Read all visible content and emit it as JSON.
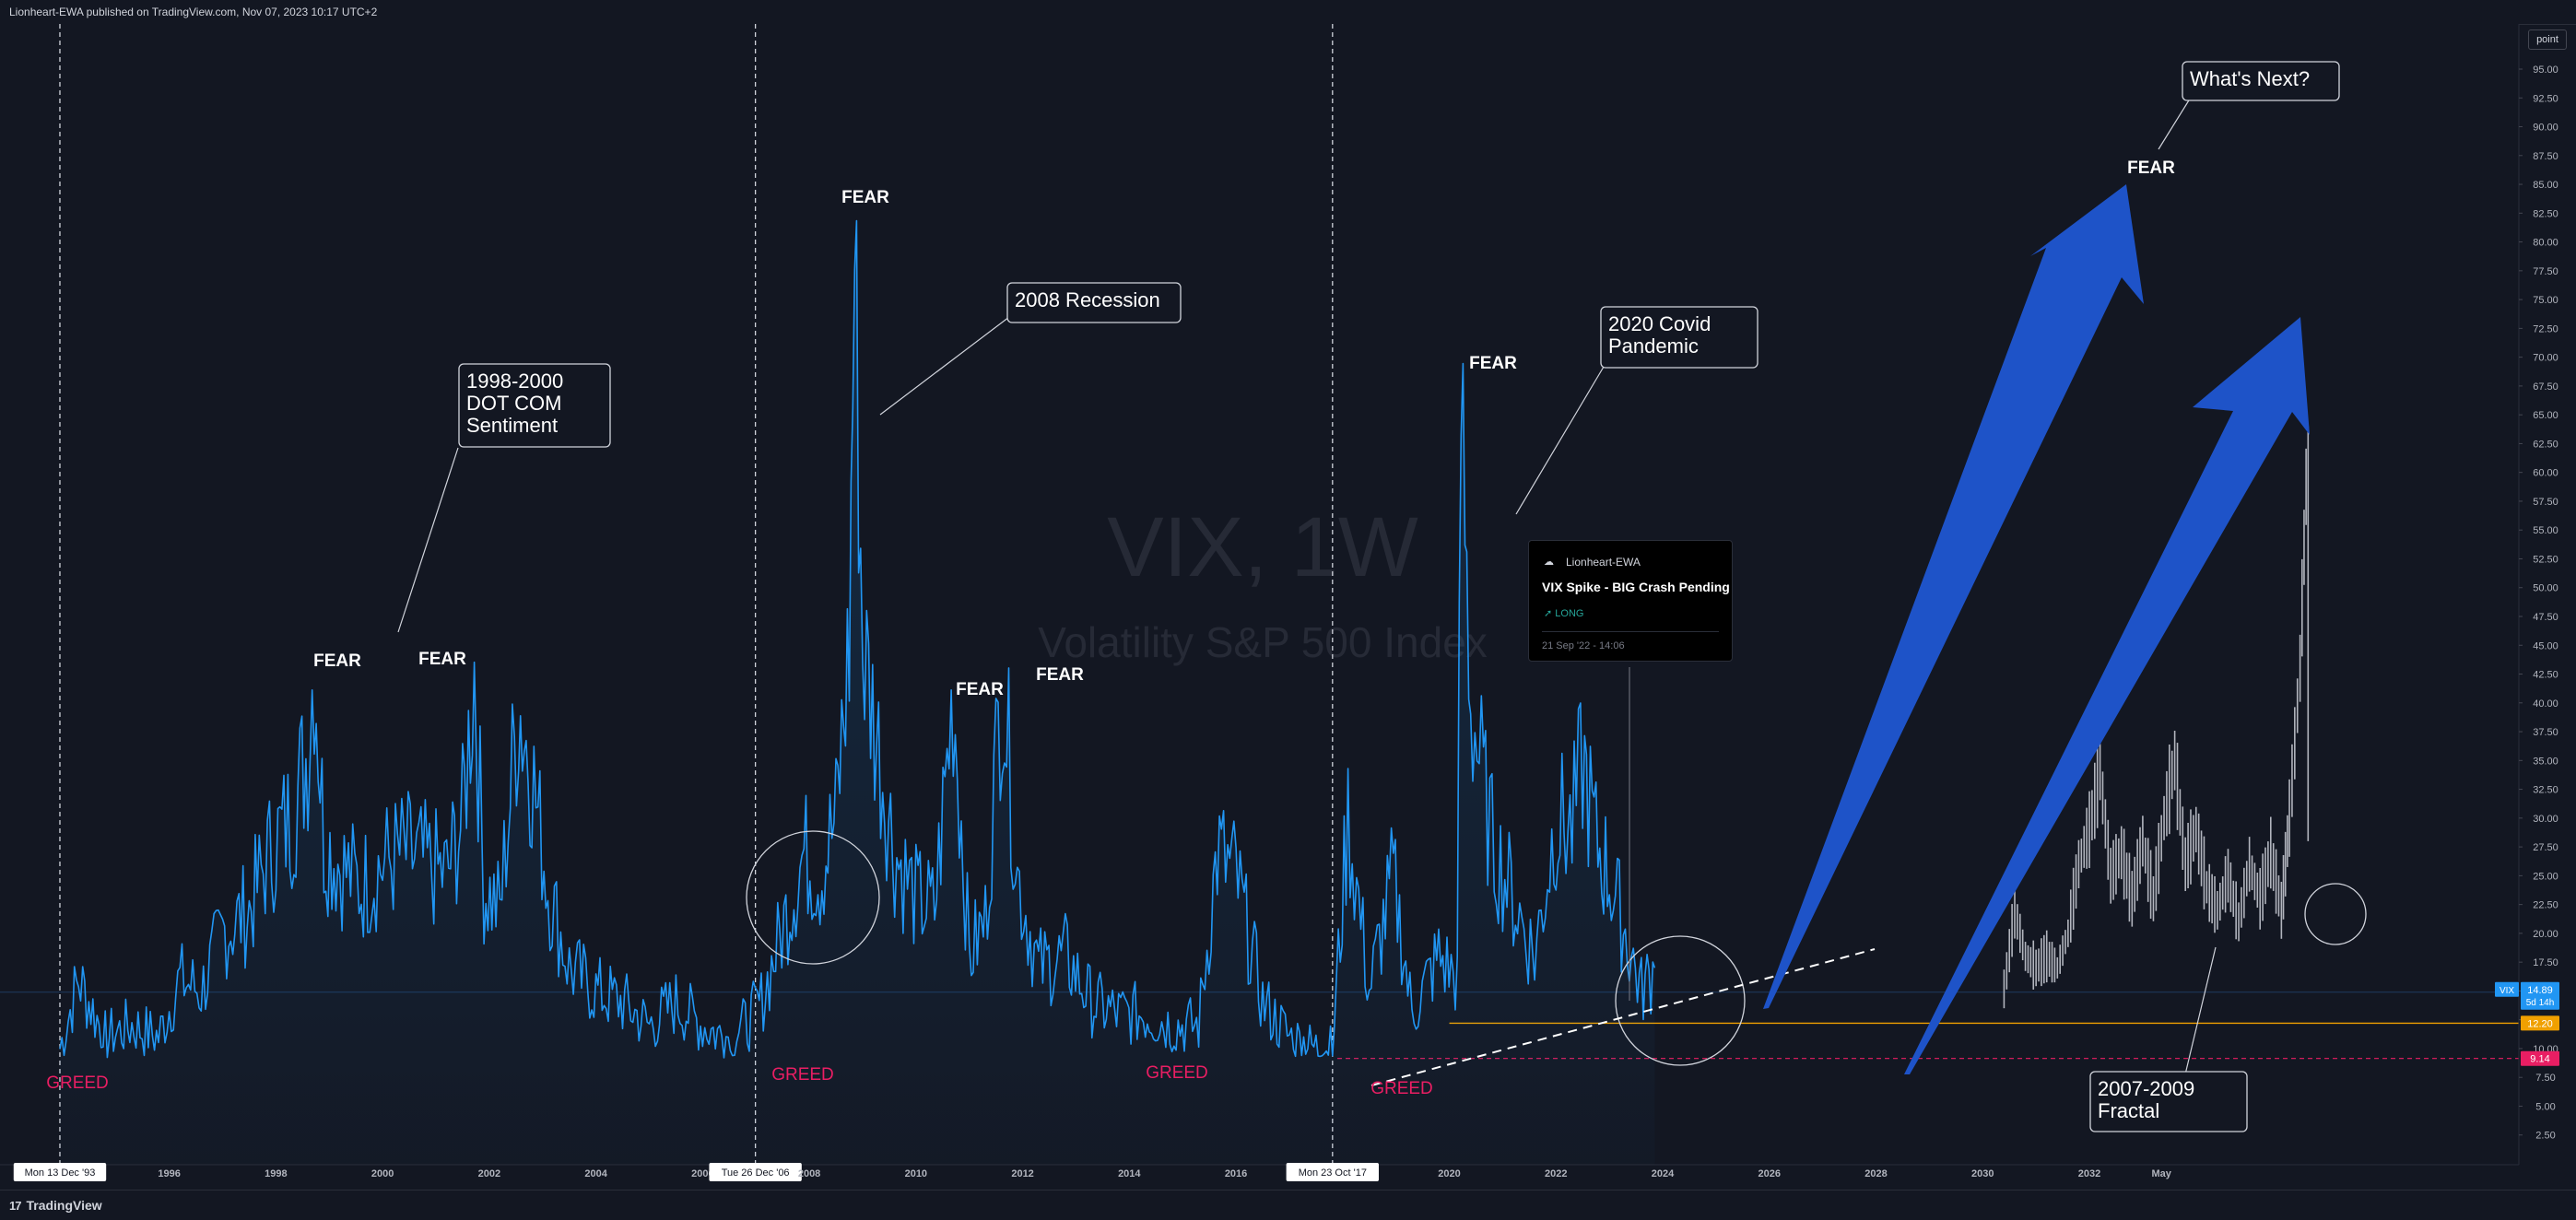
{
  "header": {
    "attribution": "Lionheart-EWA published on TradingView.com, Nov 07, 2023 10:17 UTC+2"
  },
  "footer": {
    "brand": "TradingView"
  },
  "toolbar": {
    "scale_mode": "point"
  },
  "watermark": {
    "symbol": "VIX, 1W",
    "description": "Volatility S&P 500 Index"
  },
  "colors": {
    "series": "#2196f3",
    "projection": "#b2b5be",
    "arrows": "#1e53c8",
    "greed": "#e91e63",
    "support": "#f0a000"
  },
  "idea_card": {
    "author": "Lionheart-EWA",
    "title": "VIX Spike - BIG Crash Pending",
    "direction": "LONG",
    "time": "21 Sep '22 - 14:06"
  },
  "chart_data": {
    "type": "line",
    "title": "VIX, 1W",
    "subtitle": "Volatility S&P 500 Index",
    "xlim": [
      1993.0,
      2040.0
    ],
    "ylim": [
      0,
      95
    ],
    "x_ticks": [
      "Mon 13 Dec '93",
      "1996",
      "1998",
      "2000",
      "2002",
      "2004",
      "2006",
      "Tue 26 Dec '06",
      "2008",
      "2010",
      "2012",
      "2014",
      "2016",
      "Mon 23 Oct '17",
      "2020",
      "2022",
      "2024",
      "2026",
      "2028",
      "2030",
      "2032",
      "May"
    ],
    "y_ticks": [
      "95.00",
      "92.50",
      "90.00",
      "87.50",
      "85.00",
      "82.50",
      "80.00",
      "77.50",
      "75.00",
      "72.50",
      "70.00",
      "67.50",
      "65.00",
      "62.50",
      "60.00",
      "57.50",
      "55.00",
      "52.50",
      "50.00",
      "47.50",
      "45.00",
      "42.50",
      "40.00",
      "37.50",
      "35.00",
      "32.50",
      "30.00",
      "27.50",
      "25.00",
      "22.50",
      "20.00",
      "17.50",
      "15.00",
      "12.50",
      "10.00",
      "7.50",
      "5.00",
      "2.50"
    ],
    "series": [
      {
        "name": "VIX",
        "x": [
          1993.95,
          1994.3,
          1994.8,
          1995.3,
          1995.8,
          1996.2,
          1996.6,
          1997.0,
          1997.5,
          1997.8,
          1998.0,
          1998.3,
          1998.6,
          1998.72,
          1998.9,
          1999.2,
          1999.6,
          2000.0,
          2000.4,
          2000.8,
          2001.2,
          2001.5,
          2001.72,
          2001.9,
          2002.2,
          2002.55,
          2002.8,
          2003.1,
          2003.5,
          2004.0,
          2004.5,
          2005.0,
          2005.5,
          2006.0,
          2006.4,
          2006.8,
          2007.1,
          2007.6,
          2007.9,
          2008.2,
          2008.5,
          2008.75,
          2008.85,
          2009.0,
          2009.3,
          2009.6,
          2010.0,
          2010.35,
          2010.7,
          2011.0,
          2011.3,
          2011.62,
          2011.9,
          2012.3,
          2012.8,
          2013.3,
          2013.8,
          2014.3,
          2014.8,
          2015.3,
          2015.65,
          2016.0,
          2016.5,
          2017.0,
          2017.5,
          2017.81,
          2018.1,
          2018.5,
          2018.95,
          2019.3,
          2019.8,
          2020.15,
          2020.22,
          2020.4,
          2020.8,
          2021.2,
          2021.6,
          2022.0,
          2022.3,
          2022.5,
          2022.75,
          2023.0,
          2023.3,
          2023.6,
          2023.85
        ],
        "values": [
          10,
          16,
          11,
          12,
          11,
          16,
          15,
          20,
          22,
          26,
          28,
          30,
          36,
          44,
          28,
          26,
          24,
          26,
          27,
          26,
          25,
          30,
          43,
          24,
          22,
          40,
          34,
          24,
          17,
          15,
          14,
          12,
          14,
          12,
          11,
          12,
          14,
          22,
          27,
          25,
          30,
          45,
          79,
          45,
          36,
          27,
          23,
          22,
          41,
          18,
          21,
          43,
          25,
          17,
          18,
          14,
          13,
          13,
          12,
          12,
          27,
          25,
          14,
          11,
          10,
          10,
          30,
          15,
          25,
          13,
          18,
          16,
          66,
          40,
          28,
          23,
          18,
          30,
          29,
          35,
          28,
          25,
          20,
          15,
          17
        ]
      },
      {
        "name": "2007-2009 Fractal",
        "x": [
          2030.4,
          2030.6,
          2030.8,
          2031.0,
          2031.2,
          2031.4,
          2031.6,
          2031.8,
          2032.0,
          2032.2,
          2032.4,
          2032.6,
          2032.8,
          2033.0,
          2033.2,
          2033.4,
          2033.6,
          2033.8,
          2034.0,
          2034.2,
          2034.4,
          2034.6,
          2034.8,
          2035.0,
          2035.2,
          2035.4,
          2035.6,
          2035.75,
          2035.95,
          2036.1
        ],
        "values": [
          15,
          22,
          18,
          17,
          18,
          17,
          20,
          26,
          29,
          34,
          25,
          27,
          23,
          28,
          23,
          30,
          35,
          26,
          29,
          24,
          22,
          25,
          21,
          26,
          23,
          27,
          22,
          30,
          43,
          64
        ]
      }
    ],
    "annotations": {
      "callouts": [
        "1998-2000\nDOT COM\nSentiment",
        "2008 Recession",
        "2020 Covid\nPandemic",
        "What's Next?",
        "2007-2009\nFractal"
      ],
      "fear_labels": [
        "FEAR",
        "FEAR",
        "FEAR",
        "FEAR",
        "FEAR",
        "FEAR",
        "FEAR"
      ],
      "greed_labels": [
        "GREED",
        "GREED",
        "GREED",
        "GREED"
      ]
    },
    "price_labels": [
      {
        "text": "VIX",
        "value": 14.89
      },
      {
        "text": "14.89",
        "value": 14.89
      },
      {
        "text": "5d 14h",
        "value": 14.89
      },
      {
        "text": "12.20",
        "value": 12.2
      },
      {
        "text": "9.14",
        "value": 9.14
      }
    ],
    "levels": [
      12.2,
      9.14,
      14.89
    ],
    "grid": false,
    "legend": "none"
  }
}
